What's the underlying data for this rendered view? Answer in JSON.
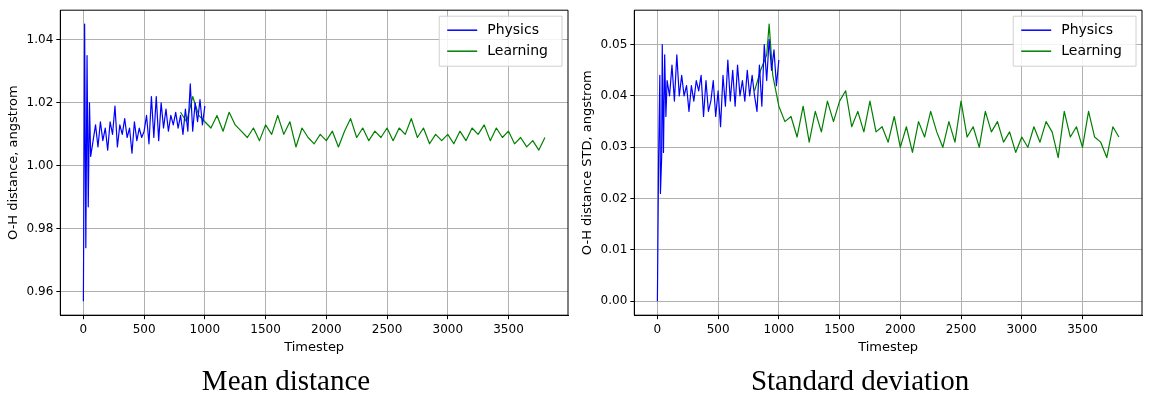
{
  "chart_data": [
    {
      "type": "line",
      "title": "Mean distance",
      "xlabel": "Timestep",
      "ylabel": "O-H distance, angstrom",
      "xlim": [
        -190,
        3990
      ],
      "ylim": [
        0.9526,
        1.0494
      ],
      "xticks": [
        0,
        500,
        1000,
        1500,
        2000,
        2500,
        3000,
        3500
      ],
      "yticks": [
        0.96,
        0.98,
        {
          "value": 1,
          "label": "1.00"
        },
        1.02,
        1.04
      ],
      "grid": true,
      "legend": "top right",
      "series": [
        {
          "name": "Physics",
          "color": "#0000ff",
          "x": [
            0,
            10,
            20,
            30,
            40,
            50,
            60,
            80,
            100,
            120,
            140,
            160,
            180,
            200,
            220,
            240,
            260,
            280,
            300,
            320,
            340,
            360,
            380,
            400,
            420,
            440,
            460,
            480,
            500,
            520,
            540,
            560,
            580,
            600,
            620,
            640,
            660,
            680,
            700,
            720,
            740,
            760,
            780,
            800,
            820,
            840,
            860,
            880,
            900,
            920,
            940,
            960,
            980,
            1000
          ],
          "values": [
            0.957,
            1.045,
            0.974,
            1.035,
            0.987,
            1.02,
            1.003,
            1.008,
            1.013,
            1.006,
            1.014,
            1.008,
            1.012,
            1.005,
            1.014,
            1.01,
            1.019,
            1.006,
            1.013,
            1.01,
            1.015,
            1.009,
            1.012,
            1.004,
            1.014,
            1.008,
            1.012,
            1.009,
            1.011,
            1.016,
            1.007,
            1.022,
            1.009,
            1.022,
            1.008,
            1.02,
            1.012,
            1.018,
            1.011,
            1.016,
            1.013,
            1.017,
            1.012,
            1.016,
            1.01,
            1.018,
            1.011,
            1.026,
            1.011,
            1.02,
            1.014,
            1.021,
            1.013,
            1.019
          ]
        },
        {
          "name": "Learning",
          "color": "#008000",
          "x": [
            800,
            850,
            900,
            950,
            1000,
            1050,
            1100,
            1150,
            1200,
            1250,
            1300,
            1350,
            1400,
            1450,
            1500,
            1550,
            1600,
            1650,
            1700,
            1750,
            1800,
            1850,
            1900,
            1950,
            2000,
            2050,
            2100,
            2150,
            2200,
            2250,
            2300,
            2350,
            2400,
            2450,
            2500,
            2550,
            2600,
            2650,
            2700,
            2750,
            2800,
            2850,
            2900,
            2950,
            3000,
            3050,
            3100,
            3150,
            3200,
            3250,
            3300,
            3350,
            3400,
            3450,
            3500,
            3550,
            3600,
            3650,
            3700,
            3750,
            3800
          ],
          "values": [
            1.017,
            1.014,
            1.022,
            1.016,
            1.014,
            1.012,
            1.016,
            1.011,
            1.017,
            1.013,
            1.011,
            1.009,
            1.012,
            1.008,
            1.013,
            1.01,
            1.016,
            1.01,
            1.014,
            1.006,
            1.012,
            1.009,
            1.007,
            1.01,
            1.008,
            1.011,
            1.006,
            1.011,
            1.015,
            1.009,
            1.012,
            1.008,
            1.011,
            1.009,
            1.012,
            1.008,
            1.012,
            1.01,
            1.015,
            1.009,
            1.012,
            1.007,
            1.01,
            1.008,
            1.01,
            1.007,
            1.011,
            1.008,
            1.012,
            1.01,
            1.013,
            1.008,
            1.012,
            1.009,
            1.011,
            1.007,
            1.009,
            1.006,
            1.008,
            1.005,
            1.009
          ]
        }
      ]
    },
    {
      "type": "line",
      "title": "Standard deviation",
      "xlabel": "Timestep",
      "ylabel": "O-H distance STD, angstrom",
      "xlim": [
        -190,
        3990
      ],
      "ylim": [
        -0.0027,
        0.0567
      ],
      "xticks": [
        0,
        500,
        1000,
        1500,
        2000,
        2500,
        3000,
        3500
      ],
      "yticks": [
        {
          "value": 0,
          "label": "0.00"
        },
        0.01,
        0.02,
        0.03,
        0.04,
        0.05
      ],
      "grid": true,
      "legend": "top right",
      "series": [
        {
          "name": "Physics",
          "color": "#0000ff",
          "x": [
            0,
            10,
            20,
            25,
            35,
            40,
            50,
            60,
            70,
            80,
            100,
            120,
            140,
            160,
            180,
            200,
            220,
            240,
            260,
            280,
            300,
            320,
            340,
            360,
            380,
            400,
            420,
            440,
            460,
            480,
            500,
            520,
            540,
            560,
            580,
            600,
            620,
            640,
            660,
            680,
            700,
            720,
            740,
            760,
            780,
            800,
            820,
            840,
            860,
            880,
            900,
            920,
            940,
            960,
            980,
            1000
          ],
          "values": [
            0,
            0.028,
            0.044,
            0.021,
            0.028,
            0.05,
            0.029,
            0.048,
            0.036,
            0.043,
            0.04,
            0.046,
            0.039,
            0.048,
            0.04,
            0.044,
            0.04,
            0.042,
            0.037,
            0.042,
            0.039,
            0.043,
            0.041,
            0.044,
            0.036,
            0.043,
            0.037,
            0.039,
            0.043,
            0.036,
            0.041,
            0.034,
            0.044,
            0.038,
            0.047,
            0.039,
            0.045,
            0.038,
            0.046,
            0.04,
            0.043,
            0.039,
            0.045,
            0.04,
            0.044,
            0.04,
            0.037,
            0.046,
            0.038,
            0.05,
            0.043,
            0.051,
            0.045,
            0.049,
            0.042,
            0.047
          ]
        },
        {
          "name": "Learning",
          "color": "#008000",
          "x": [
            800,
            850,
            900,
            920,
            950,
            1000,
            1050,
            1100,
            1150,
            1200,
            1250,
            1300,
            1350,
            1400,
            1450,
            1500,
            1550,
            1600,
            1650,
            1700,
            1750,
            1800,
            1850,
            1900,
            1950,
            2000,
            2050,
            2100,
            2150,
            2200,
            2250,
            2300,
            2350,
            2400,
            2450,
            2500,
            2550,
            2600,
            2650,
            2700,
            2750,
            2800,
            2850,
            2900,
            2950,
            3000,
            3050,
            3100,
            3150,
            3200,
            3250,
            3300,
            3350,
            3400,
            3450,
            3500,
            3550,
            3600,
            3650,
            3700,
            3750,
            3800
          ],
          "values": [
            0.041,
            0.045,
            0.048,
            0.054,
            0.044,
            0.038,
            0.035,
            0.036,
            0.032,
            0.038,
            0.031,
            0.037,
            0.033,
            0.039,
            0.035,
            0.039,
            0.041,
            0.034,
            0.037,
            0.033,
            0.039,
            0.033,
            0.034,
            0.031,
            0.036,
            0.03,
            0.034,
            0.029,
            0.035,
            0.032,
            0.037,
            0.033,
            0.03,
            0.035,
            0.031,
            0.039,
            0.032,
            0.034,
            0.03,
            0.037,
            0.033,
            0.035,
            0.031,
            0.033,
            0.029,
            0.032,
            0.03,
            0.034,
            0.031,
            0.035,
            0.033,
            0.028,
            0.037,
            0.032,
            0.034,
            0.03,
            0.037,
            0.032,
            0.031,
            0.028,
            0.034,
            0.032
          ]
        }
      ]
    }
  ]
}
